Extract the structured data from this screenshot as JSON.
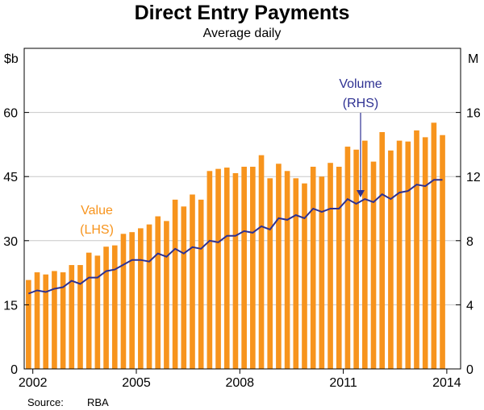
{
  "chart_data": {
    "type": "bar",
    "title": "Direct Entry Payments",
    "subtitle": "Average daily",
    "left_unit": "$b",
    "right_unit": "M",
    "x_ticks": [
      "2002",
      "2005",
      "2008",
      "2011",
      "2014"
    ],
    "x_tick_positions": [
      2002,
      2005,
      2008,
      2011,
      2014
    ],
    "xlim": [
      2001.75,
      2014.4
    ],
    "left_axis": {
      "lim": [
        0,
        75
      ],
      "ticks": [
        0,
        15,
        30,
        45,
        60
      ]
    },
    "right_axis": {
      "lim": [
        0,
        20
      ],
      "ticks": [
        0,
        4,
        8,
        12,
        16
      ]
    },
    "grid": true,
    "series": [
      {
        "name": "Value",
        "label_lines": [
          "Value",
          "(LHS)"
        ],
        "axis": "left",
        "kind": "bar",
        "color": "#f7941d",
        "x_start": 2001.875,
        "step": 0.25,
        "values": [
          20.8,
          22.6,
          22.1,
          22.9,
          22.6,
          24.3,
          24.3,
          27.2,
          26.5,
          28.6,
          28.9,
          31.6,
          32.0,
          32.9,
          33.8,
          35.7,
          34.6,
          39.6,
          38.0,
          40.8,
          39.6,
          46.3,
          46.8,
          47.1,
          45.8,
          47.3,
          47.3,
          50.0,
          44.6,
          48.0,
          46.3,
          44.6,
          43.4,
          47.3,
          45.0,
          48.2,
          47.3,
          52.0,
          51.3,
          53.4,
          48.5,
          55.4,
          51.1,
          53.4,
          53.2,
          55.8,
          54.2,
          57.6,
          54.7
        ]
      },
      {
        "name": "Volume",
        "label_lines": [
          "Volume",
          "(RHS)"
        ],
        "axis": "right",
        "kind": "line",
        "color": "#2e3192",
        "x_start": 2001.875,
        "step": 0.25,
        "values": [
          4.7,
          4.9,
          4.8,
          5.0,
          5.1,
          5.5,
          5.3,
          5.7,
          5.7,
          6.1,
          6.2,
          6.5,
          6.8,
          6.8,
          6.7,
          7.2,
          7.0,
          7.5,
          7.2,
          7.6,
          7.5,
          8.0,
          7.9,
          8.3,
          8.3,
          8.6,
          8.5,
          8.9,
          8.7,
          9.4,
          9.3,
          9.6,
          9.4,
          10.0,
          9.8,
          10.0,
          10.0,
          10.6,
          10.3,
          10.6,
          10.4,
          10.9,
          10.6,
          11.0,
          11.1,
          11.5,
          11.4,
          11.8,
          11.8
        ]
      }
    ],
    "source_label": "Source:",
    "source_value": "RBA"
  }
}
